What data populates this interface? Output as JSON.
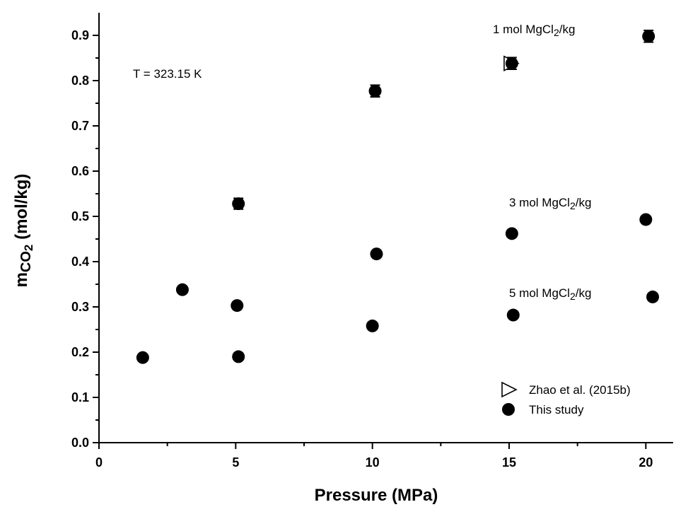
{
  "chart_data": {
    "type": "scatter",
    "xlabel": "Pressure (MPa)",
    "ylabel": {
      "main": "m",
      "sub": "CO",
      "sub2": "2",
      "unit": " (mol/kg)"
    },
    "xlim": [
      0,
      21
    ],
    "ylim": [
      0,
      0.95
    ],
    "x_ticks": [
      0,
      5,
      10,
      15,
      20
    ],
    "x_tick_labels": [
      "0",
      "5",
      "10",
      "15",
      "20"
    ],
    "y_ticks": [
      0.0,
      0.1,
      0.2,
      0.3,
      0.4,
      0.5,
      0.6,
      0.7,
      0.8,
      0.9
    ],
    "y_tick_labels": [
      "0.0",
      "0.1",
      "0.2",
      "0.3",
      "0.4",
      "0.5",
      "0.6",
      "0.7",
      "0.8",
      "0.9"
    ],
    "series": [
      {
        "name": "Zhao et al. (2015b)",
        "marker": "open-right-triangle",
        "points": [
          {
            "x": 15.05,
            "y": 0.838
          }
        ]
      },
      {
        "name": "This study",
        "marker": "filled-circle",
        "points": [
          {
            "x": 1.6,
            "y": 0.188
          },
          {
            "x": 3.05,
            "y": 0.338
          },
          {
            "x": 5.05,
            "y": 0.303
          },
          {
            "x": 5.1,
            "y": 0.19
          },
          {
            "x": 5.1,
            "y": 0.528,
            "err": 0.012
          },
          {
            "x": 10.0,
            "y": 0.258
          },
          {
            "x": 10.15,
            "y": 0.417
          },
          {
            "x": 10.1,
            "y": 0.777,
            "err": 0.013
          },
          {
            "x": 15.1,
            "y": 0.838,
            "err": 0.013
          },
          {
            "x": 15.15,
            "y": 0.282
          },
          {
            "x": 15.1,
            "y": 0.462
          },
          {
            "x": 20.0,
            "y": 0.493
          },
          {
            "x": 20.25,
            "y": 0.322
          },
          {
            "x": 20.1,
            "y": 0.898,
            "err": 0.013
          }
        ]
      }
    ],
    "annotations": [
      {
        "id": "temp",
        "text": "T = 323.15 K"
      },
      {
        "id": "mg1",
        "pre": "1 mol MgCl",
        "sub": "2",
        "post": "/kg"
      },
      {
        "id": "mg3",
        "pre": "3 mol MgCl",
        "sub": "2",
        "post": "/kg"
      },
      {
        "id": "mg5",
        "pre": "5 mol MgCl",
        "sub": "2",
        "post": "/kg"
      }
    ],
    "legend": {
      "position": "bottom-right"
    },
    "grid": false
  }
}
